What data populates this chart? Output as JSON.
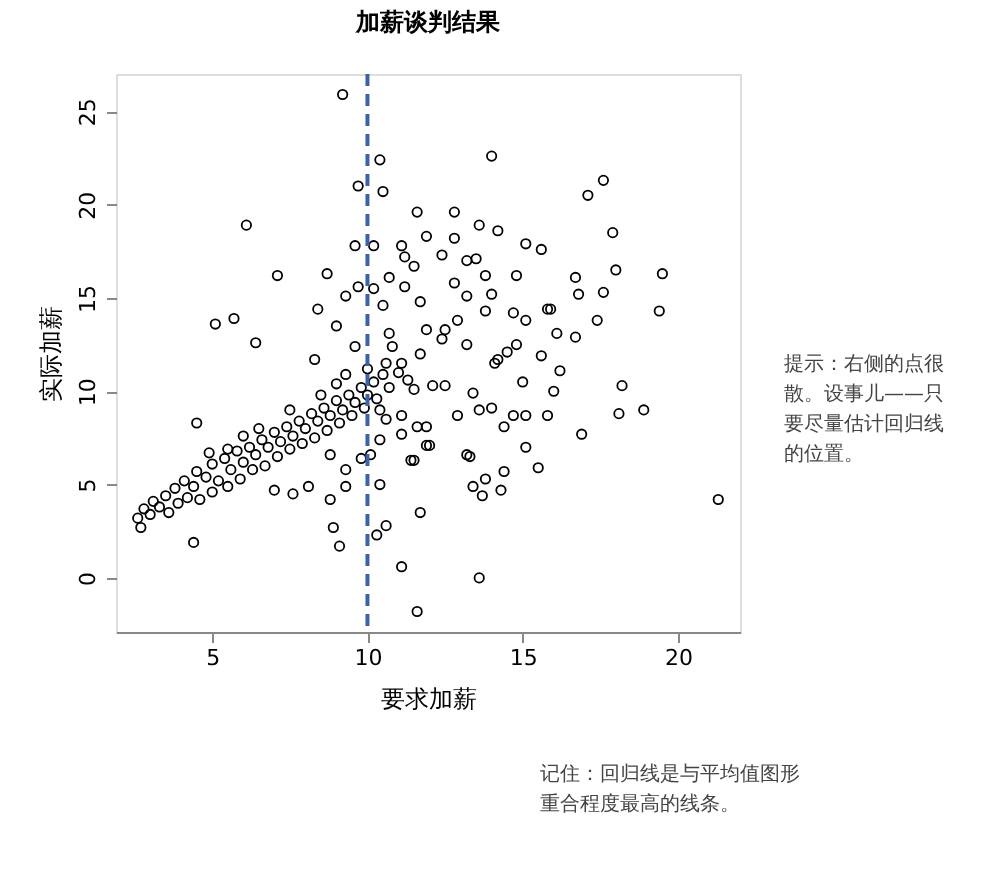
{
  "chart_data": {
    "type": "scatter",
    "title": "加薪谈判结果",
    "xlabel": "要求加薪",
    "ylabel": "实际加薪",
    "xlim": [
      1.9,
      22.0
    ],
    "ylim": [
      -2.9,
      27.0
    ],
    "xticks": [
      5,
      10,
      15,
      20
    ],
    "yticks": [
      0,
      5,
      10,
      15,
      20,
      25
    ],
    "grid": false,
    "marker": "circle",
    "ref_lines": [
      {
        "axis": "x",
        "value": 10,
        "color": "#3d62a8",
        "line_style": "dashed"
      }
    ],
    "annotations": [
      "提示：右侧的点很散。设事儿——只要尽量估计回归线的位置。",
      "记住：回归线是与平均值图形重合程度最高的线条。"
    ],
    "series": [
      {
        "color": "#000000",
        "x": [
          9.2,
          10.4,
          14.0,
          10.5,
          9.7,
          6.1,
          7.1,
          8.7,
          5.1,
          5.7,
          6.4,
          11.6,
          12.8,
          13.6,
          14.2,
          11.9,
          12.8,
          11.1,
          9.6,
          10.2,
          11.2,
          12.4,
          13.2,
          13.5,
          11.5,
          10.7,
          11.2,
          13.8,
          14.8,
          14.0,
          9.3,
          9.7,
          10.2,
          10.5,
          11.7,
          12.8,
          13.2,
          8.4,
          9.0,
          11.9,
          12.5,
          12.9,
          13.8,
          14.7,
          15.1,
          15.8,
          8.3,
          9.6,
          10.7,
          10.8,
          11.7,
          12.4,
          13.2,
          14.2,
          14.8,
          11.1,
          17.6,
          17.1,
          17.9,
          15.1,
          15.6,
          18.0,
          19.5,
          16.7,
          16.8,
          17.6,
          15.9,
          17.4,
          19.4,
          16.1,
          16.7,
          15.6,
          14.5,
          16.2,
          15.0,
          18.2,
          14.1,
          18.9,
          18.1,
          16.9,
          16.0,
          15.8,
          15.1,
          14.7,
          14.4,
          15.1,
          15.5,
          14.4,
          14.3,
          13.8,
          13.4,
          13.7,
          21.3,
          11.7,
          13.6,
          11.6,
          11.1,
          13.3,
          12.9,
          13.6,
          14.0,
          13.4,
          12.5,
          12.1,
          11.5,
          11.9,
          11.5,
          12.0,
          4.5,
          4.4,
          2.7,
          7.0,
          7.6,
          8.1,
          8.8,
          9.3,
          8.9,
          9.1,
          10.4,
          10.6,
          10.3,
          8.8,
          9.3,
          9.8,
          10.1,
          10.4,
          11.1,
          10.6,
          11.6,
          11.4,
          11.9,
          10.4,
          11.1,
          13.2,
          2.6,
          2.8,
          3.0,
          3.1,
          3.3,
          3.5,
          3.6,
          3.8,
          3.9,
          4.1,
          4.2,
          4.4,
          4.5,
          4.6,
          4.8,
          5.0,
          5.0,
          5.2,
          5.4,
          5.5,
          5.6,
          5.8,
          5.9,
          6.0,
          6.2,
          6.3,
          6.4,
          6.6,
          6.7,
          6.8,
          7.0,
          7.1,
          7.2,
          7.4,
          7.5,
          7.6,
          7.8,
          7.9,
          8.0,
          8.2,
          8.3,
          8.4,
          8.6,
          8.7,
          8.8,
          9.0,
          9.1,
          9.2,
          9.4,
          9.5,
          9.6,
          9.8,
          9.9,
          10.0,
          10.2,
          10.3,
          10.5,
          10.7,
          11.0,
          11.3,
          9.0,
          8.5,
          7.5,
          6.5,
          6.0,
          5.5,
          4.9,
          9.3,
          10.0,
          10.6
        ],
        "values": [
          25.9,
          22.4,
          22.6,
          20.7,
          21.0,
          18.9,
          16.2,
          16.3,
          13.6,
          13.9,
          12.6,
          19.6,
          19.6,
          18.9,
          18.6,
          18.3,
          18.2,
          17.8,
          17.8,
          17.8,
          17.2,
          17.3,
          17.0,
          17.1,
          16.7,
          16.1,
          15.6,
          16.2,
          16.2,
          15.2,
          15.1,
          15.6,
          15.5,
          14.6,
          14.8,
          15.8,
          15.1,
          14.4,
          13.5,
          13.3,
          13.3,
          13.8,
          14.3,
          14.2,
          13.8,
          14.4,
          11.7,
          12.4,
          13.1,
          12.4,
          12.0,
          12.8,
          12.5,
          11.7,
          12.5,
          11.5,
          21.3,
          20.5,
          18.5,
          17.9,
          17.6,
          16.5,
          16.3,
          16.1,
          15.2,
          15.3,
          14.4,
          13.8,
          14.3,
          13.1,
          12.9,
          11.9,
          12.1,
          11.1,
          10.5,
          10.3,
          11.5,
          9.0,
          8.8,
          7.7,
          10.0,
          8.7,
          8.7,
          8.7,
          8.1,
          7.0,
          5.9,
          5.7,
          4.7,
          5.3,
          4.9,
          4.4,
          4.2,
          3.5,
          0.0,
          -1.8,
          0.6,
          6.5,
          8.7,
          9.0,
          9.1,
          9.9,
          10.3,
          10.3,
          10.1,
          8.1,
          6.3,
          7.1,
          8.3,
          1.9,
          2.7,
          4.7,
          4.5,
          4.9,
          4.2,
          4.9,
          2.7,
          1.7,
          5.0,
          2.8,
          2.3,
          6.6,
          5.8,
          6.4,
          6.6,
          7.4,
          7.7,
          8.5,
          8.1,
          6.3,
          7.1,
          9.0,
          8.7,
          6.6,
          3.2,
          3.7,
          3.4,
          4.1,
          3.8,
          4.4,
          3.5,
          4.8,
          4.0,
          5.2,
          4.3,
          4.9,
          5.7,
          4.2,
          5.4,
          6.1,
          4.6,
          5.2,
          6.4,
          4.9,
          5.8,
          6.8,
          5.3,
          6.2,
          7.0,
          5.8,
          6.6,
          7.4,
          6.0,
          7.0,
          7.8,
          6.5,
          7.3,
          8.1,
          6.9,
          7.6,
          8.4,
          7.2,
          8.0,
          8.8,
          7.5,
          8.4,
          9.1,
          7.9,
          8.7,
          9.5,
          8.3,
          9.0,
          9.8,
          8.7,
          9.4,
          10.2,
          9.1,
          9.8,
          10.5,
          9.6,
          10.9,
          10.2,
          11.0,
          10.6,
          10.4,
          9.8,
          9.0,
          8.0,
          7.6,
          6.9,
          6.7,
          10.9,
          11.2,
          11.5
        ]
      }
    ]
  }
}
